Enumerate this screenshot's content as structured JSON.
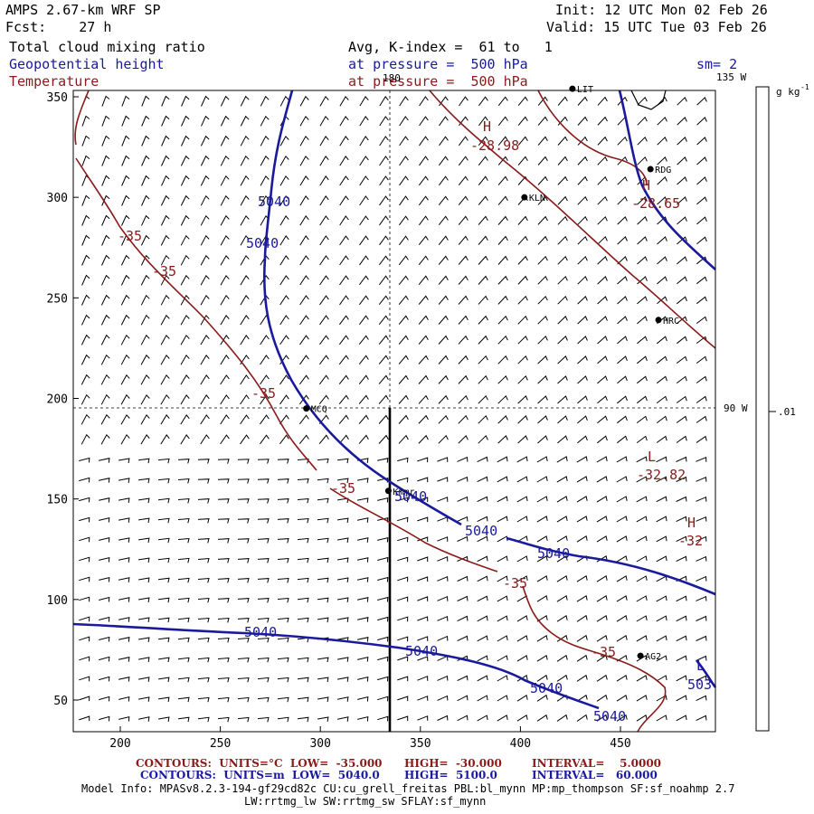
{
  "header": {
    "model_title": "AMPS 2.67-km WRF SP",
    "forecast": "Fcst:    27 h",
    "init": "Init: 12 UTC Mon 02 Feb 26",
    "valid": "Valid: 15 UTC Tue 03 Feb 26",
    "field1": "Total cloud mixing ratio",
    "field2": "Geopotential height",
    "field3": "Temperature",
    "field1_info": "Avg, K-index =  61 to   1",
    "field2_info": "at pressure =  500 hPa",
    "field3_info": "at pressure =  500 hPa",
    "smoothing": "sm= 2"
  },
  "map": {
    "x_ticks": [
      "200",
      "250",
      "300",
      "350",
      "400",
      "450"
    ],
    "y_ticks": [
      "350",
      "300",
      "250",
      "200",
      "150",
      "100",
      "50"
    ],
    "lon_labels": {
      "top_180": "180",
      "top_135w": "135 W",
      "right_90w": "90 W"
    },
    "stations": [
      {
        "name": "LIT",
        "lon": 426,
        "lat": 354
      },
      {
        "name": "RDG",
        "lon": 465,
        "lat": 314
      },
      {
        "name": "KLN",
        "lon": 402,
        "lat": 300
      },
      {
        "name": "HRC",
        "lon": 469,
        "lat": 239
      },
      {
        "name": "MCQ",
        "lon": 293,
        "lat": 195
      },
      {
        "name": "Kmmr",
        "lon": 334,
        "lat": 154
      },
      {
        "name": "AG2",
        "lon": 460,
        "lat": 72
      }
    ],
    "pressure_centers": [
      {
        "label": "H",
        "value": "-28.98"
      },
      {
        "label": "H",
        "value": "-28.65"
      },
      {
        "label": "L",
        "value": "-32.82"
      },
      {
        "label": "H",
        "value": "-32"
      },
      {
        "label": "L",
        "value": "503"
      }
    ],
    "height_contour_label": "5040",
    "temp_contour_label": "-35",
    "colors": {
      "height": "#1a1a9c",
      "temperature": "#8b1a1a",
      "frame": "#000000"
    }
  },
  "colorbar": {
    "unit": "g kg",
    "unit_exp": "-1",
    "tick": ".01"
  },
  "footer": {
    "line1_contours": "CONTOURS:  UNITS=°C  LOW=  -35.000",
    "line1_high": "HIGH=  -30.000",
    "line1_interval": "INTERVAL=    5.0000",
    "line2_contours": "CONTOURS:  UNITS=m  LOW=  5040.0",
    "line2_high": "HIGH=  5100.0",
    "line2_interval": "INTERVAL=   60.000",
    "model_info": "Model Info: MPASv8.2.3-194-gf29cd82c CU:cu_grell_freitas PBL:bl_mynn MP:mp_thompson SF:sf_noahmp 2.7",
    "model_info2": "LW:rrtmg_lw SW:rrtmg_sw SFLAY:sf_mynn"
  }
}
